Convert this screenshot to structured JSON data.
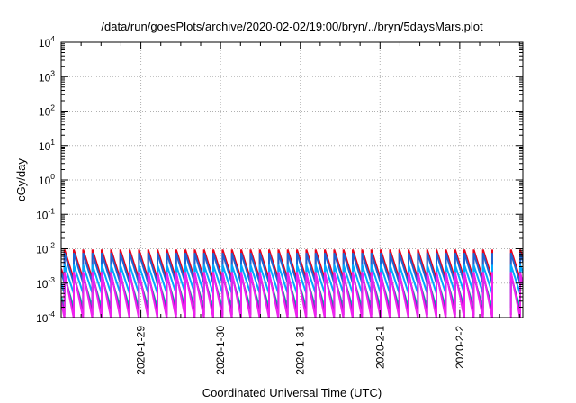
{
  "chart_data": {
    "type": "line",
    "title": "/data/run/goesPlots/archive/2020-02-02/19:00/bryn/../bryn/5daysMars.plot",
    "xlabel": "Coordinated Universal Time (UTC)",
    "ylabel": "cGy/day",
    "yscale": "log",
    "ylim": [
      0.0001,
      10000
    ],
    "y_ticks": [
      {
        "value": 0.0001,
        "base": "10",
        "exp": "-4"
      },
      {
        "value": 0.001,
        "base": "10",
        "exp": "-3"
      },
      {
        "value": 0.01,
        "base": "10",
        "exp": "-2"
      },
      {
        "value": 0.1,
        "base": "10",
        "exp": "-1"
      },
      {
        "value": 1,
        "base": "10",
        "exp": "0"
      },
      {
        "value": 10,
        "base": "10",
        "exp": "1"
      },
      {
        "value": 100,
        "base": "10",
        "exp": "2"
      },
      {
        "value": 1000,
        "base": "10",
        "exp": "3"
      },
      {
        "value": 10000,
        "base": "10",
        "exp": "4"
      }
    ],
    "xlim": [
      "2020-01-28T00:00",
      "2020-02-02T19:00"
    ],
    "x_ticks": [
      {
        "value": "2020-01-29T00:00",
        "label": "2020-1-29"
      },
      {
        "value": "2020-01-30T00:00",
        "label": "2020-1-30"
      },
      {
        "value": "2020-01-31T00:00",
        "label": "2020-1-31"
      },
      {
        "value": "2020-02-01T00:00",
        "label": "2020-2-1"
      },
      {
        "value": "2020-02-02T00:00",
        "label": "2020-2-2"
      }
    ],
    "grid": true,
    "waveform": {
      "period_hours": 2.8,
      "first_peak": "2020-01-28T01:00",
      "gap_start": "2020-02-02T11:00",
      "gap_end": "2020-02-02T12:45"
    },
    "series": [
      {
        "color": "#e8001c",
        "peak": 0.0095,
        "trough": 0.0013
      },
      {
        "color": "#1e64d2",
        "peak": 0.0075,
        "trough": 0.001
      },
      {
        "color": "#00aaff",
        "peak": 0.0034,
        "trough": 0.0005
      },
      {
        "color": "#00c0a0",
        "peak": 0.0016,
        "trough": 0.00019
      },
      {
        "color": "#8000c0",
        "peak": 0.002,
        "trough": 0.00012
      },
      {
        "color": "#ee22ee",
        "peak": 0.0021,
        "trough": 9.5e-05
      }
    ]
  }
}
